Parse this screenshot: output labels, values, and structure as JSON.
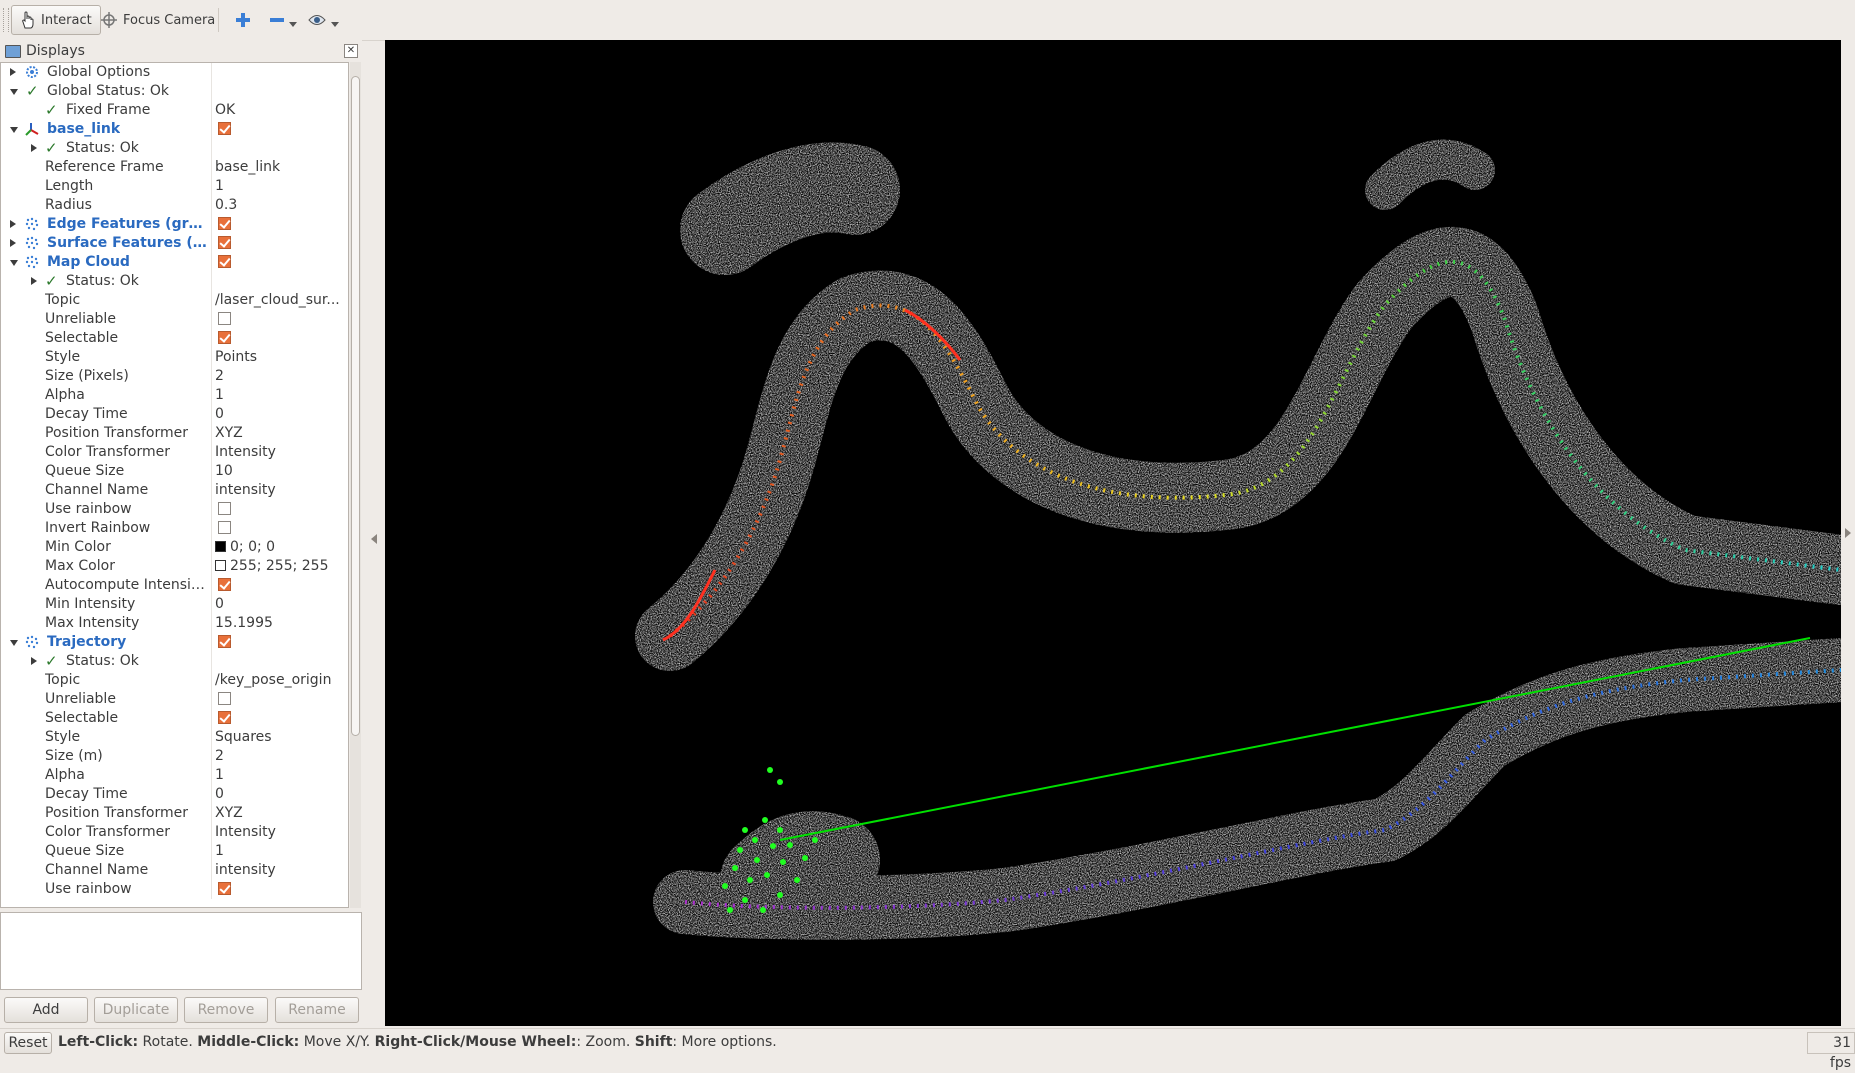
{
  "toolbar": {
    "interact_label": "Interact",
    "focus_camera_label": "Focus Camera"
  },
  "displays": {
    "title": "Displays",
    "rows": [
      {
        "label": "Global Options",
        "value": ""
      },
      {
        "label": "Global Status: Ok",
        "value": ""
      },
      {
        "label": "Fixed Frame",
        "value": "OK"
      },
      {
        "label": "base_link",
        "value": ""
      },
      {
        "label": "Status: Ok",
        "value": ""
      },
      {
        "label": "Reference Frame",
        "value": "base_link"
      },
      {
        "label": "Length",
        "value": "1"
      },
      {
        "label": "Radius",
        "value": "0.3"
      },
      {
        "label": "Edge Features (green)",
        "value": ""
      },
      {
        "label": "Surface Features (pi...",
        "value": ""
      },
      {
        "label": "Map Cloud",
        "value": ""
      },
      {
        "label": "Status: Ok",
        "value": ""
      },
      {
        "label": "Topic",
        "value": "/laser_cloud_sur..."
      },
      {
        "label": "Unreliable",
        "value": ""
      },
      {
        "label": "Selectable",
        "value": ""
      },
      {
        "label": "Style",
        "value": "Points"
      },
      {
        "label": "Size (Pixels)",
        "value": "2"
      },
      {
        "label": "Alpha",
        "value": "1"
      },
      {
        "label": "Decay Time",
        "value": "0"
      },
      {
        "label": "Position Transformer",
        "value": "XYZ"
      },
      {
        "label": "Color Transformer",
        "value": "Intensity"
      },
      {
        "label": "Queue Size",
        "value": "10"
      },
      {
        "label": "Channel Name",
        "value": "intensity"
      },
      {
        "label": "Use rainbow",
        "value": ""
      },
      {
        "label": "Invert Rainbow",
        "value": ""
      },
      {
        "label": "Min Color",
        "value": "0; 0; 0"
      },
      {
        "label": "Max Color",
        "value": "255; 255; 255"
      },
      {
        "label": "Autocompute Intensit...",
        "value": ""
      },
      {
        "label": "Min Intensity",
        "value": "0"
      },
      {
        "label": "Max Intensity",
        "value": "15.1995"
      },
      {
        "label": "Trajectory",
        "value": ""
      },
      {
        "label": "Status: Ok",
        "value": ""
      },
      {
        "label": "Topic",
        "value": "/key_pose_origin"
      },
      {
        "label": "Unreliable",
        "value": ""
      },
      {
        "label": "Selectable",
        "value": ""
      },
      {
        "label": "Style",
        "value": "Squares"
      },
      {
        "label": "Size (m)",
        "value": "2"
      },
      {
        "label": "Alpha",
        "value": "1"
      },
      {
        "label": "Decay Time",
        "value": "0"
      },
      {
        "label": "Position Transformer",
        "value": "XYZ"
      },
      {
        "label": "Color Transformer",
        "value": "Intensity"
      },
      {
        "label": "Queue Size",
        "value": "1"
      },
      {
        "label": "Channel Name",
        "value": "intensity"
      },
      {
        "label": "Use rainbow",
        "value": ""
      }
    ]
  },
  "buttons": {
    "add": "Add",
    "duplicate": "Duplicate",
    "remove": "Remove",
    "rename": "Rename"
  },
  "statusbar": {
    "reset": "Reset",
    "hint_parts": [
      {
        "text": "Left-Click:",
        "bold": true
      },
      {
        "text": " Rotate. ",
        "bold": false
      },
      {
        "text": "Middle-Click:",
        "bold": true
      },
      {
        "text": " Move X/Y. ",
        "bold": false
      },
      {
        "text": "Right-Click/Mouse Wheel:",
        "bold": true
      },
      {
        "text": ": Zoom. ",
        "bold": false
      },
      {
        "text": "Shift",
        "bold": true
      },
      {
        "text": ": More options.",
        "bold": false
      }
    ],
    "fps": "31 fps"
  },
  "colors": {
    "accent_checkbox": "#e8703a",
    "link_blue": "#2a6ac0",
    "status_ok": "#2d7a2d",
    "viewport_bg": "#000000",
    "loop_closure_line": "#00e000"
  }
}
